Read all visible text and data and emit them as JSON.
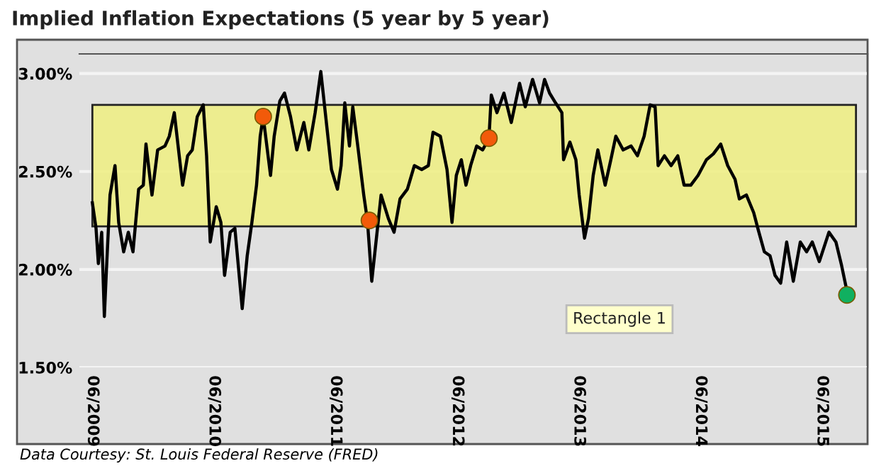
{
  "chart_data": {
    "type": "line",
    "title": "Implied Inflation Expectations (5 year by 5 year)",
    "annotations": [
      "Rectangle 1",
      "Data Courtesy: St. Louis Federal Reserve (FRED)"
    ],
    "series": [
      {
        "color": "#000000",
        "x": [
          "2009-06-01",
          "2009-06-12",
          "2009-06-19",
          "2009-06-29",
          "2009-07-07",
          "2009-07-13",
          "2009-07-24",
          "2009-08-08",
          "2009-08-19",
          "2009-09-03",
          "2009-09-17",
          "2009-10-01",
          "2009-10-18",
          "2009-11-01",
          "2009-11-09",
          "2009-11-27",
          "2009-12-14",
          "2010-01-05",
          "2010-01-18",
          "2010-02-02",
          "2010-02-27",
          "2010-03-14",
          "2010-03-28",
          "2010-04-12",
          "2010-04-30",
          "2010-05-10",
          "2010-05-21",
          "2010-06-08",
          "2010-06-22",
          "2010-07-03",
          "2010-07-20",
          "2010-08-03",
          "2010-08-25",
          "2010-09-09",
          "2010-09-23",
          "2010-10-07",
          "2010-10-18",
          "2010-10-27",
          "2010-11-18",
          "2010-11-29",
          "2010-12-16",
          "2010-12-30",
          "2011-01-17",
          "2011-02-05",
          "2011-02-26",
          "2011-03-13",
          "2011-04-01",
          "2011-04-18",
          "2011-05-06",
          "2011-05-20",
          "2011-06-07",
          "2011-06-18",
          "2011-06-29",
          "2011-07-13",
          "2011-07-23",
          "2011-08-07",
          "2011-08-25",
          "2011-09-05",
          "2011-09-18",
          "2011-10-02",
          "2011-10-16",
          "2011-11-07",
          "2011-11-24",
          "2011-12-12",
          "2012-01-03",
          "2012-01-24",
          "2012-02-15",
          "2012-03-06",
          "2012-03-20",
          "2012-04-11",
          "2012-05-01",
          "2012-05-16",
          "2012-05-29",
          "2012-06-13",
          "2012-06-27",
          "2012-07-11",
          "2012-07-29",
          "2012-08-16",
          "2012-09-04",
          "2012-09-11",
          "2012-09-28",
          "2012-10-19",
          "2012-11-10",
          "2012-12-05",
          "2012-12-22",
          "2013-01-13",
          "2013-02-03",
          "2013-02-18",
          "2013-03-05",
          "2013-03-23",
          "2013-04-11",
          "2013-04-16",
          "2013-05-05",
          "2013-05-23",
          "2013-06-02",
          "2013-06-18",
          "2013-06-30",
          "2013-07-14",
          "2013-07-28",
          "2013-08-19",
          "2013-09-05",
          "2013-09-20",
          "2013-10-12",
          "2013-11-05",
          "2013-11-24",
          "2013-12-14",
          "2014-01-01",
          "2014-01-16",
          "2014-01-25",
          "2014-02-13",
          "2014-03-05",
          "2014-03-25",
          "2014-04-13",
          "2014-05-03",
          "2014-05-25",
          "2014-06-19",
          "2014-07-10",
          "2014-08-01",
          "2014-08-22",
          "2014-09-13",
          "2014-09-26",
          "2014-10-17",
          "2014-11-08",
          "2014-11-22",
          "2014-12-10",
          "2014-12-27",
          "2015-01-11",
          "2015-01-28",
          "2015-02-15",
          "2015-03-07",
          "2015-03-28",
          "2015-04-16",
          "2015-05-03",
          "2015-05-24",
          "2015-06-22",
          "2015-07-13",
          "2015-07-30",
          "2015-08-15"
        ],
        "values": [
          2.34,
          2.21,
          2.03,
          2.19,
          1.76,
          1.99,
          2.38,
          2.53,
          2.24,
          2.09,
          2.19,
          2.09,
          2.41,
          2.43,
          2.64,
          2.38,
          2.61,
          2.63,
          2.68,
          2.8,
          2.43,
          2.58,
          2.61,
          2.78,
          2.84,
          2.58,
          2.14,
          2.32,
          2.24,
          1.97,
          2.19,
          2.21,
          1.8,
          2.07,
          2.24,
          2.43,
          2.68,
          2.78,
          2.48,
          2.68,
          2.86,
          2.9,
          2.78,
          2.61,
          2.75,
          2.61,
          2.8,
          3.01,
          2.73,
          2.51,
          2.41,
          2.53,
          2.85,
          2.63,
          2.83,
          2.63,
          2.38,
          2.25,
          1.94,
          2.16,
          2.38,
          2.26,
          2.19,
          2.36,
          2.41,
          2.53,
          2.51,
          2.53,
          2.7,
          2.68,
          2.51,
          2.24,
          2.48,
          2.56,
          2.43,
          2.53,
          2.63,
          2.61,
          2.67,
          2.89,
          2.8,
          2.9,
          2.75,
          2.95,
          2.83,
          2.97,
          2.85,
          2.97,
          2.9,
          2.85,
          2.8,
          2.56,
          2.65,
          2.56,
          2.38,
          2.16,
          2.26,
          2.48,
          2.61,
          2.43,
          2.56,
          2.68,
          2.61,
          2.63,
          2.58,
          2.68,
          2.84,
          2.83,
          2.53,
          2.58,
          2.53,
          2.58,
          2.43,
          2.43,
          2.48,
          2.56,
          2.59,
          2.64,
          2.53,
          2.46,
          2.36,
          2.38,
          2.29,
          2.2,
          2.09,
          2.07,
          1.97,
          1.93,
          2.14,
          1.94,
          2.14,
          2.09,
          2.14,
          2.04,
          2.19,
          2.14,
          2.02,
          1.89
        ]
      },
      {
        "type": "scatter",
        "marker": "circle",
        "x": [
          "2010-10-27",
          "2011-09-11",
          "2012-09-04",
          "2015-08-15"
        ],
        "values": [
          2.78,
          2.25,
          2.67,
          1.87
        ],
        "colors": [
          "#f25a0a",
          "#f25a0a",
          "#f25a0a",
          "#10b060"
        ]
      }
    ],
    "bands": [
      {
        "axis": "y",
        "from": 2.22,
        "to": 2.84,
        "color": "#eeee80"
      }
    ],
    "xlim": [
      "2009-04-23",
      "2015-10-16"
    ],
    "xticks": [
      {
        "value": "2009-06-01",
        "label": "06/2009"
      },
      {
        "value": "2010-06-01",
        "label": "06/2010"
      },
      {
        "value": "2011-06-01",
        "label": "06/2011"
      },
      {
        "value": "2012-06-01",
        "label": "06/2012"
      },
      {
        "value": "2013-06-01",
        "label": "06/2013"
      },
      {
        "value": "2014-06-01",
        "label": "06/2014"
      },
      {
        "value": "2015-06-01",
        "label": "06/2015"
      }
    ],
    "ylim": [
      1.5,
      3.1
    ],
    "yticks": [
      {
        "value": 1.5,
        "label": "1.50%"
      },
      {
        "value": 2.0,
        "label": "2.00%"
      },
      {
        "value": 2.5,
        "label": "2.50%"
      },
      {
        "value": 3.0,
        "label": "3.00%"
      }
    ],
    "grid": "y"
  }
}
